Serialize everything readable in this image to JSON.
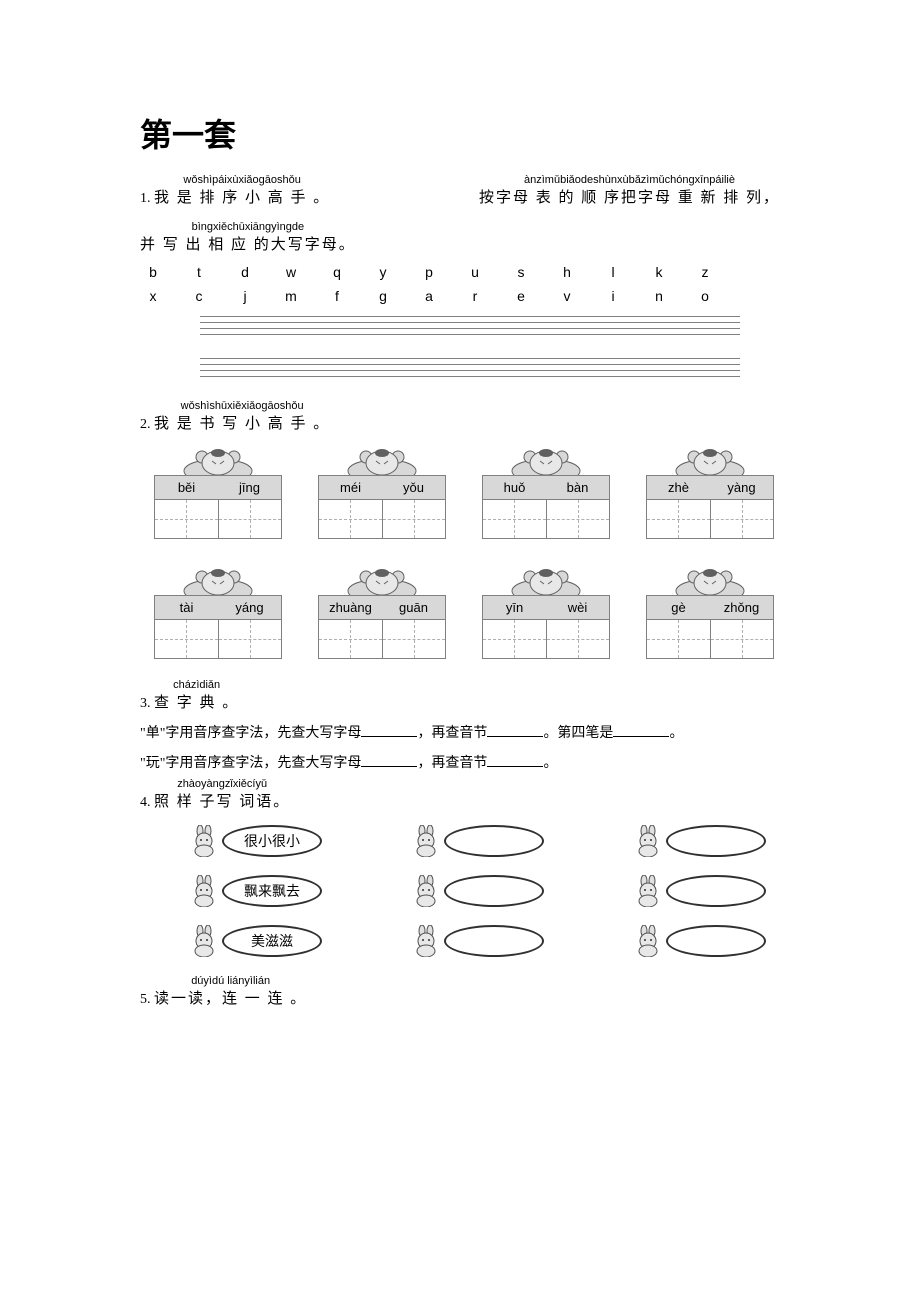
{
  "title": "第一套",
  "q1": {
    "num": "1.",
    "part1_pinyin": "wǒshìpáixùxiǎogāoshǒu",
    "part1_hanzi": "我 是 排 序 小  高  手 。",
    "part2_pinyin": "ànzìmǔbiǎodeshùnxùbǎzìmǔchóngxīnpáiliè",
    "part2_hanzi": "按字母 表 的 顺 序把字母  重  新 排 列，",
    "part3_pinyin": "bìngxiěchūxiāngyìngde",
    "part3_hanzi": " 并 写 出  相  应 的大写字母。",
    "row1": [
      "b",
      "t",
      "d",
      "w",
      "q",
      "y",
      "p",
      "u",
      "s",
      "h",
      "l",
      "k",
      "z"
    ],
    "row2": [
      "x",
      "c",
      "j",
      "m",
      "f",
      "g",
      "a",
      "r",
      "e",
      "v",
      "i",
      "n",
      "o"
    ]
  },
  "q2": {
    "num": "2.",
    "pinyin": "wǒshìshūxiěxiǎogāoshǒu",
    "hanzi": "我 是 书 写 小  高  手 。",
    "boxes": [
      {
        "a": "běi",
        "b": "jīng"
      },
      {
        "a": "méi",
        "b": "yǒu"
      },
      {
        "a": "huǒ",
        "b": "bàn"
      },
      {
        "a": "zhè",
        "b": "yàng"
      },
      {
        "a": "tài",
        "b": "yáng"
      },
      {
        "a": "zhuàng",
        "b": "guān"
      },
      {
        "a": "yīn",
        "b": "wèi"
      },
      {
        "a": "gè",
        "b": "zhǒng"
      }
    ]
  },
  "q3": {
    "num": "3.",
    "pinyin": "cházìdiǎn",
    "hanzi": " 查 字 典 。",
    "line1a": "\"单\"字用音序查字法，先查大写字母",
    "line1b": "，再查音节",
    "line1c": "。第四笔是",
    "line1d": "。",
    "line2a": "\"玩\"字用音序查字法，先查大写字母",
    "line2b": "，再查音节",
    "line2c": "。"
  },
  "q4": {
    "num": "4.",
    "pinyin": "zhàoyàngzǐxiěcíyǔ",
    "hanzi": " 照  样 子写 词语。",
    "examples": [
      "很小很小",
      "飘来飘去",
      "美滋滋"
    ]
  },
  "q5": {
    "num": "5.",
    "pinyin": "dúyìdú liányìlián",
    "hanzi": "读一读，连 一 连 。"
  }
}
